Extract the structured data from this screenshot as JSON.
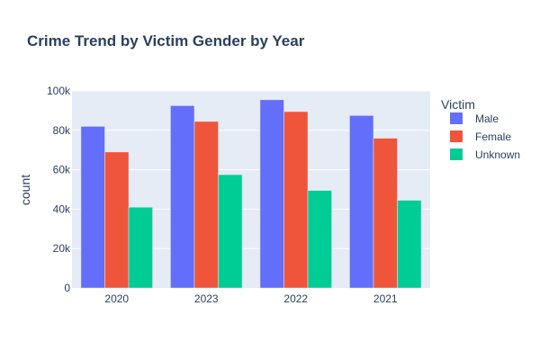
{
  "chart_data": {
    "type": "bar",
    "title": "Crime Trend by Victim Gender by Year",
    "xlabel": "",
    "ylabel": "count",
    "categories": [
      "2020",
      "2023",
      "2022",
      "2021"
    ],
    "ylim": [
      0,
      100000
    ],
    "yticks": [
      0,
      20000,
      40000,
      60000,
      80000,
      100000
    ],
    "ytick_labels": [
      "0",
      "20k",
      "40k",
      "60k",
      "80k",
      "100k"
    ],
    "grid": true,
    "legend": {
      "title": "Victim",
      "placement": "right"
    },
    "plot_background": "#e5ecf6",
    "series": [
      {
        "name": "Male",
        "color": "#636efa",
        "values": [
          82000,
          92500,
          95500,
          87500
        ]
      },
      {
        "name": "Female",
        "color": "#ef553b",
        "values": [
          69000,
          84500,
          89500,
          76000
        ]
      },
      {
        "name": "Unknown",
        "color": "#00cc96",
        "values": [
          41000,
          57500,
          49500,
          44500
        ]
      }
    ]
  }
}
